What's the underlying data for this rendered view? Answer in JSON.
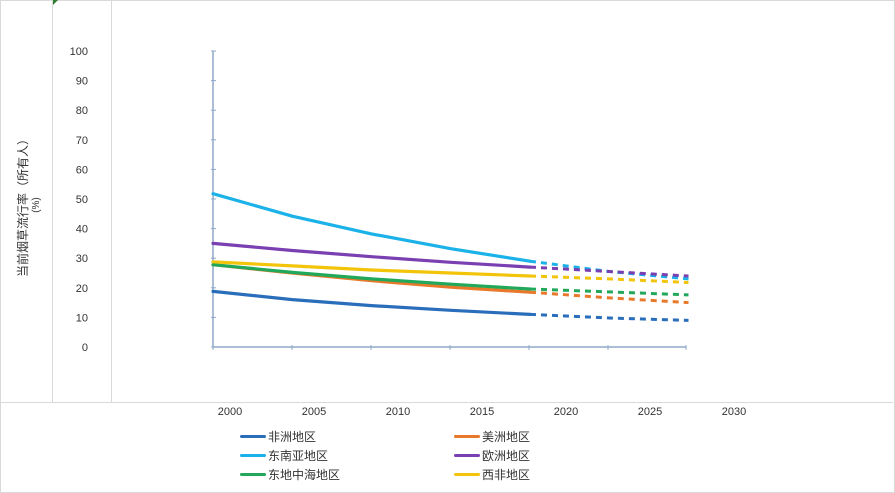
{
  "chart_data": {
    "type": "line",
    "title": "",
    "ylabel": "当前烟草流行率（所有人）",
    "yunit": "(%)",
    "xlabel": "",
    "ylim": [
      0,
      100
    ],
    "yticks": [
      0,
      10,
      20,
      30,
      40,
      50,
      60,
      70,
      80,
      90,
      100
    ],
    "xticks": [
      2000,
      2005,
      2010,
      2015,
      2020,
      2025,
      2030
    ],
    "grid": false,
    "legend_position": "bottom",
    "projection_note_style": "dashed",
    "series": [
      {
        "name": "非洲地区",
        "color": "#2a6ebb",
        "observed": {
          "x": [
            2000,
            2005,
            2010,
            2015,
            2020
          ],
          "y": [
            18.8,
            16.0,
            14.0,
            12.4,
            11.0
          ]
        },
        "projected": {
          "x": [
            2020,
            2025,
            2030
          ],
          "y": [
            11.0,
            9.8,
            9.0
          ]
        }
      },
      {
        "name": "美洲地区",
        "color": "#e8782a",
        "observed": {
          "x": [
            2000,
            2005,
            2010,
            2015,
            2020
          ],
          "y": [
            27.8,
            25.0,
            22.4,
            20.2,
            18.5
          ]
        },
        "projected": {
          "x": [
            2020,
            2025,
            2030
          ],
          "y": [
            18.5,
            16.6,
            15.0
          ]
        }
      },
      {
        "name": "东南亚地区",
        "color": "#1ab2e8",
        "observed": {
          "x": [
            2000,
            2005,
            2010,
            2015,
            2020
          ],
          "y": [
            51.8,
            44.2,
            38.2,
            33.2,
            29.0
          ]
        },
        "projected": {
          "x": [
            2020,
            2025,
            2030
          ],
          "y": [
            29.0,
            25.5,
            23.0
          ]
        }
      },
      {
        "name": "欧洲地区",
        "color": "#7a3fb0",
        "observed": {
          "x": [
            2000,
            2005,
            2010,
            2015,
            2020
          ],
          "y": [
            35.0,
            32.6,
            30.5,
            28.6,
            27.0
          ]
        },
        "projected": {
          "x": [
            2020,
            2025,
            2030
          ],
          "y": [
            27.0,
            25.5,
            24.0
          ]
        }
      },
      {
        "name": "东地中海地区",
        "color": "#22a85a",
        "observed": {
          "x": [
            2000,
            2005,
            2010,
            2015,
            2020
          ],
          "y": [
            27.8,
            25.2,
            23.0,
            21.2,
            19.6
          ]
        },
        "projected": {
          "x": [
            2020,
            2025,
            2030
          ],
          "y": [
            19.6,
            18.6,
            17.6
          ]
        }
      },
      {
        "name": "西非地区",
        "color": "#f2c40a",
        "observed": {
          "x": [
            2000,
            2005,
            2010,
            2015,
            2020
          ],
          "y": [
            28.8,
            27.4,
            26.0,
            25.0,
            24.0
          ]
        },
        "projected": {
          "x": [
            2020,
            2025,
            2030
          ],
          "y": [
            24.0,
            23.0,
            21.8
          ]
        }
      }
    ]
  }
}
